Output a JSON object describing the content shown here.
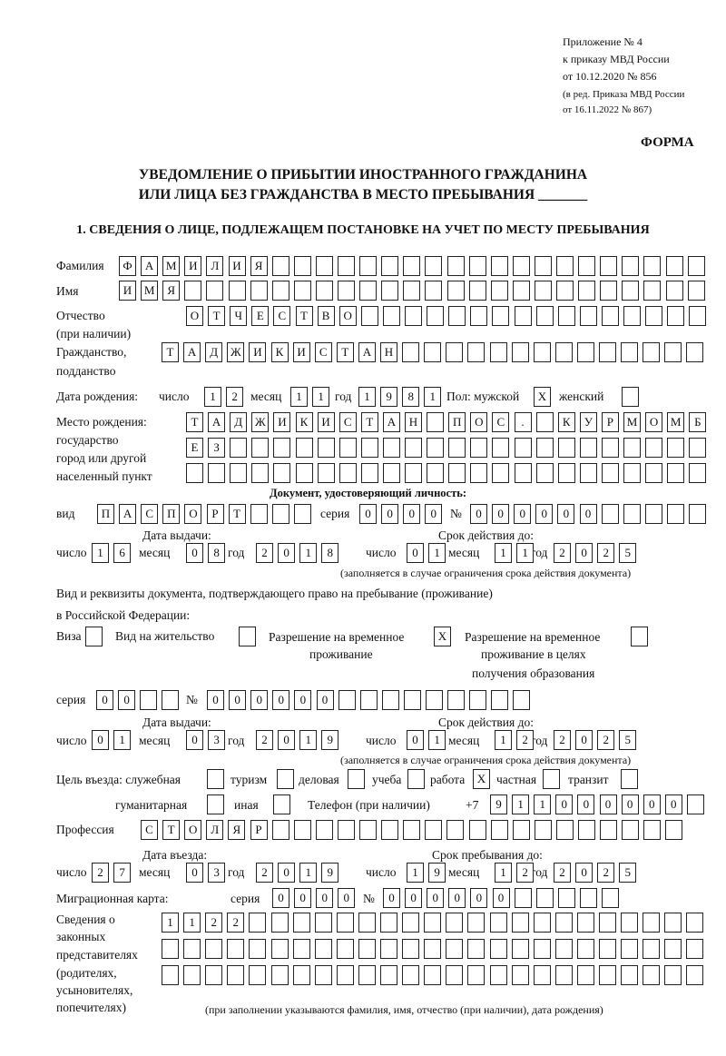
{
  "header": {
    "appendix": "Приложение № 4",
    "order": "к приказу МВД России",
    "order_date": "от 10.12.2020 № 856",
    "revision1": "(в ред. Приказа МВД России",
    "revision2": "от 16.11.2022 № 867)",
    "form_label": "ФОРМА",
    "title1": "УВЕДОМЛЕНИЕ О ПРИБЫТИИ ИНОСТРАННОГО ГРАЖДАНИНА",
    "title2": "ИЛИ ЛИЦА БЕЗ ГРАЖДАНСТВА В МЕСТО ПРЕБЫВАНИЯ _______",
    "section1": "1. СВЕДЕНИЯ О ЛИЦЕ, ПОДЛЕЖАЩЕМ ПОСТАНОВКЕ НА УЧЕТ ПО МЕСТУ ПРЕБЫВАНИЯ"
  },
  "labels": {
    "surname": "Фамилия",
    "name": "Имя",
    "patronymic1": "Отчество",
    "patronymic2": "(при наличии)",
    "citizenship1": "Гражданство,",
    "citizenship2": "подданство",
    "birth_date": "Дата рождения:",
    "day": "число",
    "month": "месяц",
    "year": "год",
    "sex": "Пол: мужской",
    "female": "женский",
    "birthplace1": "Место рождения:",
    "birthplace2": "государство",
    "birthplace3": "город или другой",
    "birthplace4": "населенный пункт",
    "id_doc": "Документ, удостоверяющий личность:",
    "kind": "вид",
    "series": "серия",
    "number": "№",
    "issue_date": "Дата выдачи:",
    "valid_until": "Срок действия до:",
    "validity_note": "(заполняется в случае ограничения срока действия документа)",
    "right_doc1": "Вид и реквизиты документа, подтверждающего право на пребывание (проживание)",
    "right_doc2": "в Российской Федерации:",
    "visa": "Виза",
    "residence": "Вид на жительство",
    "temp_permit1": "Разрешение на временное",
    "temp_permit2": "проживание",
    "edu_permit1": "Разрешение на временное",
    "edu_permit2": "проживание в целях",
    "edu_permit3": "получения образования",
    "purpose": "Цель въезда: служебная",
    "tourism": "туризм",
    "business": "деловая",
    "study": "учеба",
    "work": "работа",
    "private": "частная",
    "transit": "транзит",
    "humanitarian": "гуманитарная",
    "other": "иная",
    "phone": "Телефон (при наличии)",
    "phone_prefix": "+7",
    "profession": "Профессия",
    "entry_date": "Дата въезда:",
    "stay_until": "Срок пребывания до:",
    "migration_card": "Миграционная карта:",
    "reps1": "Сведения о",
    "reps2": "законных",
    "reps3": "представителях",
    "reps4": "(родителях,",
    "reps5": "усыновителях,",
    "reps6": "попечителях)",
    "reps_note": "(при заполнении указываются фамилия, имя, отчество (при наличии), дата рождения)"
  },
  "form": {
    "surname": [
      "Ф",
      "А",
      "М",
      "И",
      "Л",
      "И",
      "Я"
    ],
    "name": [
      "И",
      "М",
      "Я"
    ],
    "patronymic": [
      "О",
      "Т",
      "Ч",
      "Е",
      "С",
      "Т",
      "В",
      "О"
    ],
    "citizenship": [
      "Т",
      "А",
      "Д",
      "Ж",
      "И",
      "К",
      "И",
      "С",
      "Т",
      "А",
      "Н"
    ],
    "birth_day": [
      "1",
      "2"
    ],
    "birth_month": [
      "1",
      "1"
    ],
    "birth_year": [
      "1",
      "9",
      "8",
      "1"
    ],
    "sex_male": [
      "X"
    ],
    "sex_female": [
      ""
    ],
    "birthplace_1": [
      "Т",
      "А",
      "Д",
      "Ж",
      "И",
      "К",
      "И",
      "С",
      "Т",
      "А",
      "Н",
      "",
      "П",
      "О",
      "С",
      ".",
      "",
      "К",
      "У",
      "Р",
      "М",
      "О",
      "М",
      "Б"
    ],
    "birthplace_2": [
      "Е",
      "З"
    ],
    "birthplace_3": [],
    "id_kind": [
      "П",
      "А",
      "С",
      "П",
      "О",
      "Р",
      "Т"
    ],
    "id_series": [
      "0",
      "0",
      "0",
      "0"
    ],
    "id_number": [
      "0",
      "0",
      "0",
      "0",
      "0",
      "0"
    ],
    "id_issue_day": [
      "1",
      "6"
    ],
    "id_issue_month": [
      "0",
      "8"
    ],
    "id_issue_year": [
      "2",
      "0",
      "1",
      "8"
    ],
    "id_valid_day": [
      "0",
      "1"
    ],
    "id_valid_month": [
      "1",
      "1"
    ],
    "id_valid_year": [
      "2",
      "0",
      "2",
      "5"
    ],
    "visa": [
      ""
    ],
    "residence": [
      ""
    ],
    "temp_permit": [
      "X"
    ],
    "edu_permit": [
      ""
    ],
    "rd_series": [
      "0",
      "0"
    ],
    "rd_number": [
      "0",
      "0",
      "0",
      "0",
      "0",
      "0"
    ],
    "rd_issue_day": [
      "0",
      "1"
    ],
    "rd_issue_month": [
      "0",
      "3"
    ],
    "rd_issue_year": [
      "2",
      "0",
      "1",
      "9"
    ],
    "rd_valid_day": [
      "0",
      "1"
    ],
    "rd_valid_month": [
      "1",
      "2"
    ],
    "rd_valid_year": [
      "2",
      "0",
      "2",
      "5"
    ],
    "p_service": [
      ""
    ],
    "p_tourism": [
      ""
    ],
    "p_business": [
      ""
    ],
    "p_study": [
      ""
    ],
    "p_work": [
      "X"
    ],
    "p_private": [
      ""
    ],
    "p_transit": [
      ""
    ],
    "p_humanitarian": [
      ""
    ],
    "p_other": [
      ""
    ],
    "phone": [
      "9",
      "1",
      "1",
      "0",
      "0",
      "0",
      "0",
      "0",
      "0"
    ],
    "profession": [
      "С",
      "Т",
      "О",
      "Л",
      "Я",
      "Р"
    ],
    "entry_day": [
      "2",
      "7"
    ],
    "entry_month": [
      "0",
      "3"
    ],
    "entry_year": [
      "2",
      "0",
      "1",
      "9"
    ],
    "stay_day": [
      "1",
      "9"
    ],
    "stay_month": [
      "1",
      "2"
    ],
    "stay_year": [
      "2",
      "0",
      "2",
      "5"
    ],
    "mc_series": [
      "0",
      "0",
      "0",
      "0"
    ],
    "mc_number": [
      "0",
      "0",
      "0",
      "0",
      "0",
      "0"
    ],
    "reps_1": [
      "1",
      "1",
      "2",
      "2"
    ],
    "reps_2": [],
    "reps_3": []
  }
}
